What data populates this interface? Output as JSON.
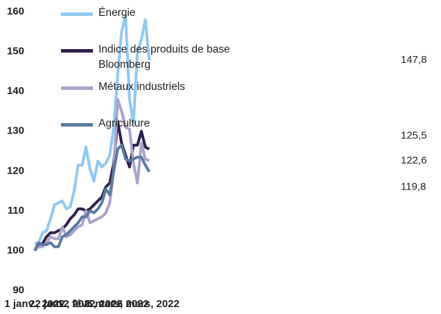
{
  "chart_data": {
    "type": "line",
    "categories": [
      "1 janv., 2022",
      null,
      null,
      null,
      null,
      null,
      null,
      "22 janv., 2022",
      null,
      null,
      null,
      null,
      null,
      null,
      "12 févr., 2022",
      null,
      null,
      null,
      null,
      null,
      null,
      "5 mars, 2022",
      null,
      null,
      null,
      null,
      null,
      null,
      "26 mars, 2022",
      null
    ],
    "ylim": [
      90,
      160
    ],
    "yticks": [
      90,
      100,
      110,
      120,
      130,
      140,
      150,
      160
    ],
    "grid": false,
    "legend": "upper left",
    "series": [
      {
        "name": "Énergie",
        "color": "#8ec9f5",
        "values": [
          101.8,
          102,
          104.5,
          105,
          108,
          111.5,
          112,
          112.5,
          110.5,
          111,
          115,
          121.5,
          121.5,
          126,
          120.5,
          117.5,
          122.5,
          121,
          122,
          124,
          131,
          144,
          155,
          159,
          138,
          132,
          150,
          153,
          158,
          147.8
        ],
        "value_labels": [
          null,
          null,
          null,
          null,
          null,
          null,
          null,
          null,
          null,
          null,
          null,
          null,
          null,
          null,
          null,
          null,
          null,
          null,
          null,
          null,
          null,
          null,
          null,
          null,
          null,
          null,
          null,
          null,
          null,
          "147,8"
        ]
      },
      {
        "name": "Indice des produits de base Bloomberg",
        "color": "#2e1f4a",
        "values": [
          100,
          101.5,
          101.8,
          103.5,
          104.5,
          104.5,
          105,
          105.5,
          106.5,
          108,
          109,
          110.5,
          110.5,
          110,
          110.5,
          111.5,
          112.5,
          113.5,
          116,
          117,
          122,
          132.5,
          127,
          124,
          121,
          126.5,
          126.5,
          130,
          126,
          125.5
        ],
        "value_labels": [
          null,
          null,
          null,
          null,
          null,
          null,
          null,
          null,
          null,
          null,
          null,
          null,
          null,
          null,
          null,
          null,
          null,
          null,
          null,
          null,
          null,
          null,
          null,
          null,
          null,
          null,
          null,
          null,
          null,
          "125,5"
        ]
      },
      {
        "name": "Métaux industriels",
        "color": "#a9a3cc",
        "values": [
          100,
          101,
          101,
          102,
          103.5,
          103,
          103,
          106,
          103.5,
          104,
          105,
          106,
          106.5,
          110,
          107,
          107.5,
          108,
          108.5,
          109.5,
          112,
          120,
          138,
          135,
          131,
          130.5,
          122,
          117,
          127,
          123,
          122.6
        ],
        "value_labels": [
          null,
          null,
          null,
          null,
          null,
          null,
          null,
          null,
          null,
          null,
          null,
          null,
          null,
          null,
          null,
          null,
          null,
          null,
          null,
          null,
          null,
          null,
          null,
          null,
          null,
          null,
          null,
          null,
          null,
          "122,6"
        ]
      },
      {
        "name": "Agriculture",
        "color": "#5a7aa0",
        "values": [
          100,
          102,
          101.5,
          101.5,
          102,
          101,
          101,
          103.5,
          104,
          105,
          106,
          107,
          108.5,
          108.5,
          110,
          109.5,
          110.5,
          112,
          115.5,
          114,
          120,
          125.5,
          126.5,
          123,
          122.5,
          123,
          123.5,
          123.5,
          121.5,
          119.8
        ],
        "value_labels": [
          null,
          null,
          null,
          null,
          null,
          null,
          null,
          null,
          null,
          null,
          null,
          null,
          null,
          null,
          null,
          null,
          null,
          null,
          null,
          null,
          null,
          null,
          null,
          null,
          null,
          null,
          null,
          null,
          null,
          "119,8"
        ]
      }
    ]
  }
}
